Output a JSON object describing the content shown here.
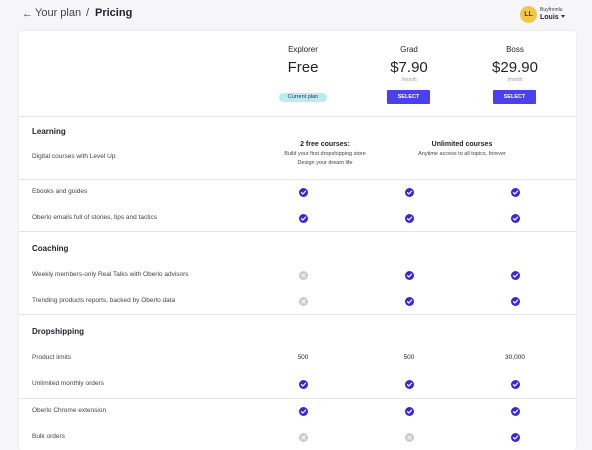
{
  "header": {
    "back_arrow": "←",
    "breadcrumb_link": "Your plan",
    "separator": "/",
    "current": "Pricing"
  },
  "user": {
    "initials": "LL",
    "store": "Buyfromlu",
    "name": "Louis"
  },
  "plans": [
    {
      "name": "Explorer",
      "price": "Free",
      "period": "",
      "badge": "Current plan",
      "select": ""
    },
    {
      "name": "Grad",
      "price": "$7.90",
      "period": "/month",
      "badge": "",
      "select": "SELECT"
    },
    {
      "name": "Boss",
      "price": "$29.90",
      "period": "/month",
      "badge": "",
      "select": "SELECT"
    }
  ],
  "sections": {
    "learning": "Learning",
    "coaching": "Coaching",
    "dropshipping": "Dropshipping"
  },
  "courses": {
    "feature": "Digital courses with Level Up",
    "free_title": "2 free courses:",
    "free_line1": "Build your first dropshipping store",
    "free_line2": "Design your dream life",
    "unlimited_title": "Unlimited courses",
    "unlimited_line1": "Anytime access to all topics, forever"
  },
  "rows": [
    {
      "feature": "Ebooks and guides",
      "values": [
        "check",
        "check",
        "check"
      ]
    },
    {
      "feature": "Oberlo emails full of stories, tips and tactics",
      "values": [
        "check",
        "check",
        "check"
      ]
    },
    {
      "feature": "Weekly members-only Real Talks with Oberlo advisors",
      "values": [
        "cross",
        "check",
        "check"
      ]
    },
    {
      "feature": "Trending products reports, backed by Oberlo data",
      "values": [
        "cross",
        "check",
        "check"
      ]
    },
    {
      "feature": "Product limits",
      "values": [
        "500",
        "500",
        "30,000"
      ]
    },
    {
      "feature": "Unlimited monthly orders",
      "values": [
        "check",
        "check",
        "check"
      ]
    },
    {
      "feature": "Oberlo Chrome extension",
      "values": [
        "check",
        "check",
        "check"
      ]
    },
    {
      "feature": "Bulk orders",
      "values": [
        "cross",
        "cross",
        "check"
      ]
    }
  ],
  "colors": {
    "accent": "#4a41e8",
    "check": "#3628d6",
    "cross": "#c9c9cf",
    "badge_bg": "#b9ebf3",
    "avatar": "#f3c648"
  },
  "icons": {
    "check": "check-circle-icon",
    "cross": "x-circle-icon"
  }
}
